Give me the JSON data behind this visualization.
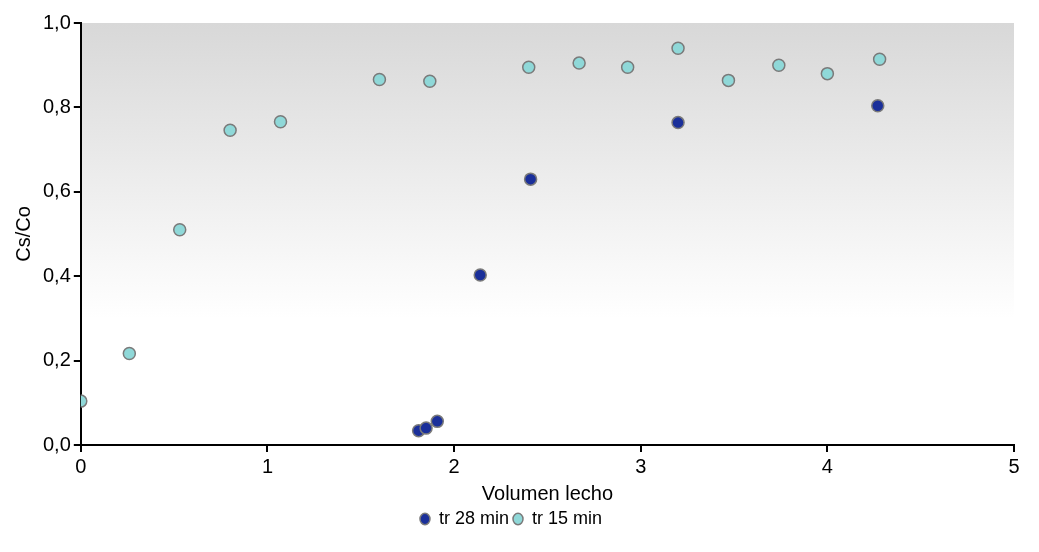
{
  "chart_data": {
    "type": "scatter",
    "xlabel": "Volumen lecho",
    "ylabel": "Cs/Co",
    "xlim": [
      0,
      5
    ],
    "xticks": [
      0,
      1,
      2,
      3,
      4,
      5
    ],
    "ylim": [
      0,
      1
    ],
    "yticks": [
      {
        "value": 0,
        "label": "0,0"
      },
      {
        "value": 0.2,
        "label": "0,2"
      },
      {
        "value": 0.4,
        "label": "0,4"
      },
      {
        "value": 0.6,
        "label": "0,6"
      },
      {
        "value": 0.8,
        "label": "0,8"
      },
      {
        "value": 1,
        "label": "1,0"
      }
    ],
    "grid": false,
    "legend": "bottom",
    "marker": "circle",
    "series": [
      {
        "name": "tr 28 min",
        "color": "#1a2f9a",
        "x": [
          1.81,
          1.85,
          1.91,
          2.14,
          2.41,
          3.2,
          4.27
        ],
        "values": [
          0.034,
          0.04,
          0.056,
          0.403,
          0.63,
          0.764,
          0.804
        ]
      },
      {
        "name": "tr 15 min",
        "color": "#8fd8d8",
        "x": [
          0,
          0.26,
          0.53,
          0.8,
          1.07,
          1.6,
          1.87,
          2.4,
          2.67,
          2.93,
          3.2,
          3.47,
          3.74,
          4.0,
          4.28
        ],
        "values": [
          0.104,
          0.217,
          0.51,
          0.746,
          0.766,
          0.866,
          0.862,
          0.895,
          0.905,
          0.895,
          0.94,
          0.864,
          0.9,
          0.88,
          0.914
        ]
      }
    ]
  }
}
